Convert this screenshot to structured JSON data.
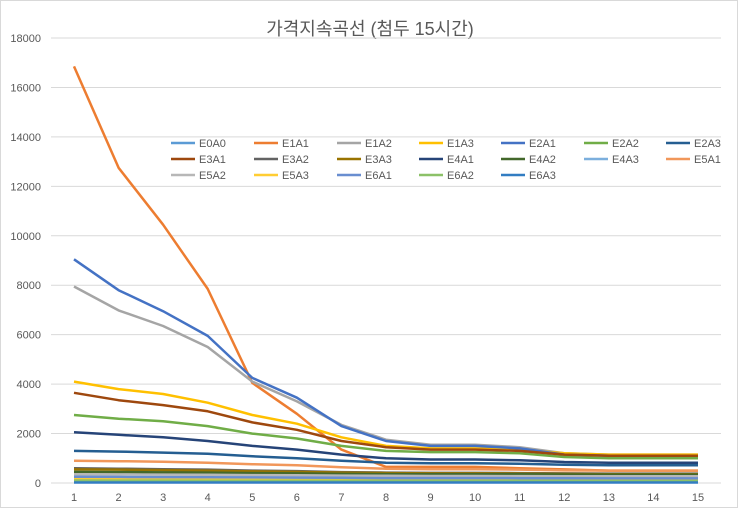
{
  "chart_data": {
    "type": "line",
    "title": "가격지속곡선 (첨두 15시간)",
    "xlabel": "",
    "ylabel": "",
    "x": [
      1,
      2,
      3,
      4,
      5,
      6,
      7,
      8,
      9,
      10,
      11,
      12,
      13,
      14,
      15
    ],
    "ylim": [
      0,
      18000
    ],
    "yticks": [
      0,
      2000,
      4000,
      6000,
      8000,
      10000,
      12000,
      14000,
      16000,
      18000
    ],
    "grid": true,
    "legend_position": "inside-top",
    "series": [
      {
        "name": "E0A0",
        "color": "#5b9bd5",
        "values": [
          60,
          60,
          60,
          60,
          60,
          60,
          60,
          60,
          60,
          60,
          60,
          60,
          60,
          60,
          60
        ]
      },
      {
        "name": "E1A1",
        "color": "#ed7d31",
        "values": [
          16850,
          12750,
          10450,
          7850,
          4050,
          2800,
          1350,
          650,
          650,
          650,
          600,
          550,
          500,
          500,
          500
        ]
      },
      {
        "name": "E1A2",
        "color": "#a5a5a5",
        "values": [
          7950,
          6980,
          6350,
          5500,
          4100,
          3300,
          2350,
          1750,
          1550,
          1550,
          1450,
          1200,
          1150,
          1150,
          1150
        ]
      },
      {
        "name": "E1A3",
        "color": "#ffc000",
        "values": [
          4100,
          3800,
          3600,
          3250,
          2750,
          2400,
          1850,
          1500,
          1400,
          1400,
          1350,
          1200,
          1150,
          1150,
          1150
        ]
      },
      {
        "name": "E2A1",
        "color": "#4472c4",
        "values": [
          9050,
          7800,
          6950,
          5950,
          4250,
          3450,
          2300,
          1700,
          1500,
          1500,
          1400,
          1150,
          1100,
          1100,
          1100
        ]
      },
      {
        "name": "E2A2",
        "color": "#70ad47",
        "values": [
          2750,
          2600,
          2500,
          2300,
          2000,
          1800,
          1500,
          1300,
          1250,
          1250,
          1200,
          1050,
          1000,
          1000,
          1000
        ]
      },
      {
        "name": "E2A3",
        "color": "#255e91",
        "values": [
          1300,
          1270,
          1230,
          1180,
          1080,
          1000,
          900,
          820,
          800,
          800,
          780,
          740,
          720,
          720,
          720
        ]
      },
      {
        "name": "E3A1",
        "color": "#9e480e",
        "values": [
          3650,
          3350,
          3150,
          2900,
          2450,
          2150,
          1700,
          1450,
          1350,
          1350,
          1300,
          1150,
          1100,
          1100,
          1100
        ]
      },
      {
        "name": "E3A2",
        "color": "#636363",
        "values": [
          600,
          580,
          560,
          540,
          500,
          480,
          440,
          420,
          410,
          410,
          400,
          390,
          380,
          380,
          380
        ]
      },
      {
        "name": "E3A3",
        "color": "#997300",
        "values": [
          550,
          540,
          520,
          500,
          470,
          450,
          420,
          400,
          390,
          390,
          380,
          370,
          360,
          360,
          360
        ]
      },
      {
        "name": "E4A1",
        "color": "#264478",
        "values": [
          2050,
          1950,
          1850,
          1700,
          1500,
          1350,
          1150,
          1000,
          950,
          950,
          920,
          850,
          820,
          820,
          820
        ]
      },
      {
        "name": "E4A2",
        "color": "#43682b",
        "values": [
          450,
          440,
          430,
          420,
          400,
          390,
          370,
          360,
          355,
          355,
          350,
          345,
          340,
          340,
          340
        ]
      },
      {
        "name": "E4A3",
        "color": "#7cafdd",
        "values": [
          200,
          195,
          190,
          185,
          180,
          175,
          170,
          165,
          162,
          162,
          160,
          158,
          156,
          156,
          156
        ]
      },
      {
        "name": "E5A1",
        "color": "#f1975a",
        "values": [
          900,
          880,
          860,
          820,
          760,
          720,
          640,
          580,
          560,
          560,
          540,
          510,
          500,
          500,
          500
        ]
      },
      {
        "name": "E5A2",
        "color": "#b7b7b7",
        "values": [
          350,
          345,
          340,
          330,
          320,
          310,
          300,
          290,
          285,
          285,
          280,
          275,
          270,
          270,
          270
        ]
      },
      {
        "name": "E5A3",
        "color": "#ffcd33",
        "values": [
          150,
          148,
          146,
          144,
          140,
          138,
          134,
          130,
          128,
          128,
          127,
          125,
          124,
          124,
          124
        ]
      },
      {
        "name": "E6A1",
        "color": "#698ed0",
        "values": [
          250,
          245,
          240,
          235,
          225,
          220,
          210,
          200,
          198,
          198,
          195,
          190,
          188,
          188,
          188
        ]
      },
      {
        "name": "E6A2",
        "color": "#8cc168",
        "values": [
          100,
          98,
          96,
          94,
          92,
          90,
          88,
          86,
          85,
          85,
          84,
          83,
          82,
          82,
          82
        ]
      },
      {
        "name": "E6A3",
        "color": "#327dc2",
        "values": [
          20,
          20,
          20,
          20,
          20,
          20,
          20,
          20,
          20,
          20,
          20,
          20,
          20,
          20,
          20
        ]
      }
    ]
  }
}
